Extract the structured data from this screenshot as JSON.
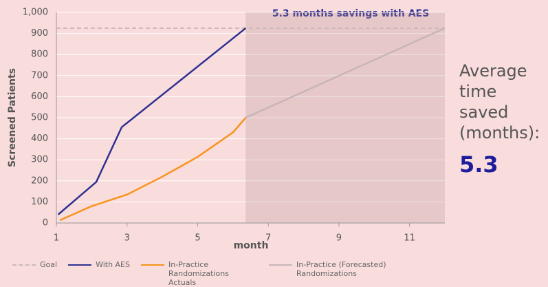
{
  "chart_data": {
    "type": "line",
    "annotation": "5.3 months savings with AES",
    "side_text": "Average time saved (months):",
    "side_value": "5.3",
    "xlabel": "month",
    "ylabel": "Screened Patients",
    "xlim": [
      1,
      12
    ],
    "ylim": [
      0,
      1000
    ],
    "xticks": [
      1,
      3,
      5,
      7,
      9,
      11
    ],
    "yticks": [
      0,
      100,
      200,
      300,
      400,
      500,
      600,
      700,
      800,
      900,
      {
        "value": 1000,
        "label": "1,000"
      }
    ],
    "grid": true,
    "shaded_region": [
      6.36,
      12
    ],
    "series": [
      {
        "name": "Goal",
        "color": "#cdb9b9",
        "dashed": true,
        "x": [
          1,
          12
        ],
        "values": [
          925,
          925
        ]
      },
      {
        "name": "With AES",
        "color": "#2e3192",
        "x": [
          1.05,
          2.13,
          2.85,
          6.36
        ],
        "values": [
          40,
          195,
          455,
          925
        ]
      },
      {
        "name": "In-Practice Randomizations Actuals",
        "color": "#f7941d",
        "x": [
          1.1,
          2,
          3,
          4,
          5,
          6,
          6.36
        ],
        "values": [
          13,
          80,
          135,
          220,
          314,
          430,
          500
        ]
      },
      {
        "name": "In-Practice (Forecasted) Randomizations",
        "color": "#c7b5b7",
        "x": [
          6.36,
          12
        ],
        "values": [
          500,
          925
        ]
      }
    ]
  }
}
